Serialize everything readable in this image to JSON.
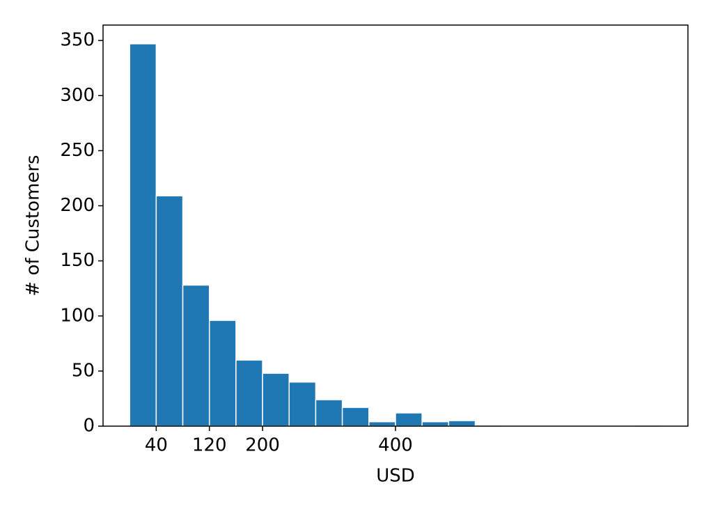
{
  "chart_data": {
    "type": "histogram",
    "x_label": "USD",
    "y_label": "# of Customers",
    "bins": [
      0,
      40,
      80,
      120,
      160,
      200,
      240,
      280,
      320,
      360,
      400,
      440,
      480,
      520,
      560,
      600,
      640,
      680,
      720,
      760,
      800
    ],
    "values": [
      347,
      209,
      128,
      96,
      60,
      48,
      40,
      24,
      17,
      4,
      12,
      4,
      5,
      1,
      0,
      0,
      0,
      0,
      0,
      1
    ],
    "color": "#1f77b4",
    "edgecolor": "#ffffff",
    "xlim": [
      -40,
      840
    ],
    "xticks": [
      40,
      120,
      200,
      400
    ],
    "ylim": [
      0,
      364
    ],
    "yticks": [
      0,
      50,
      100,
      150,
      200,
      250,
      300,
      350
    ],
    "grid": false
  }
}
